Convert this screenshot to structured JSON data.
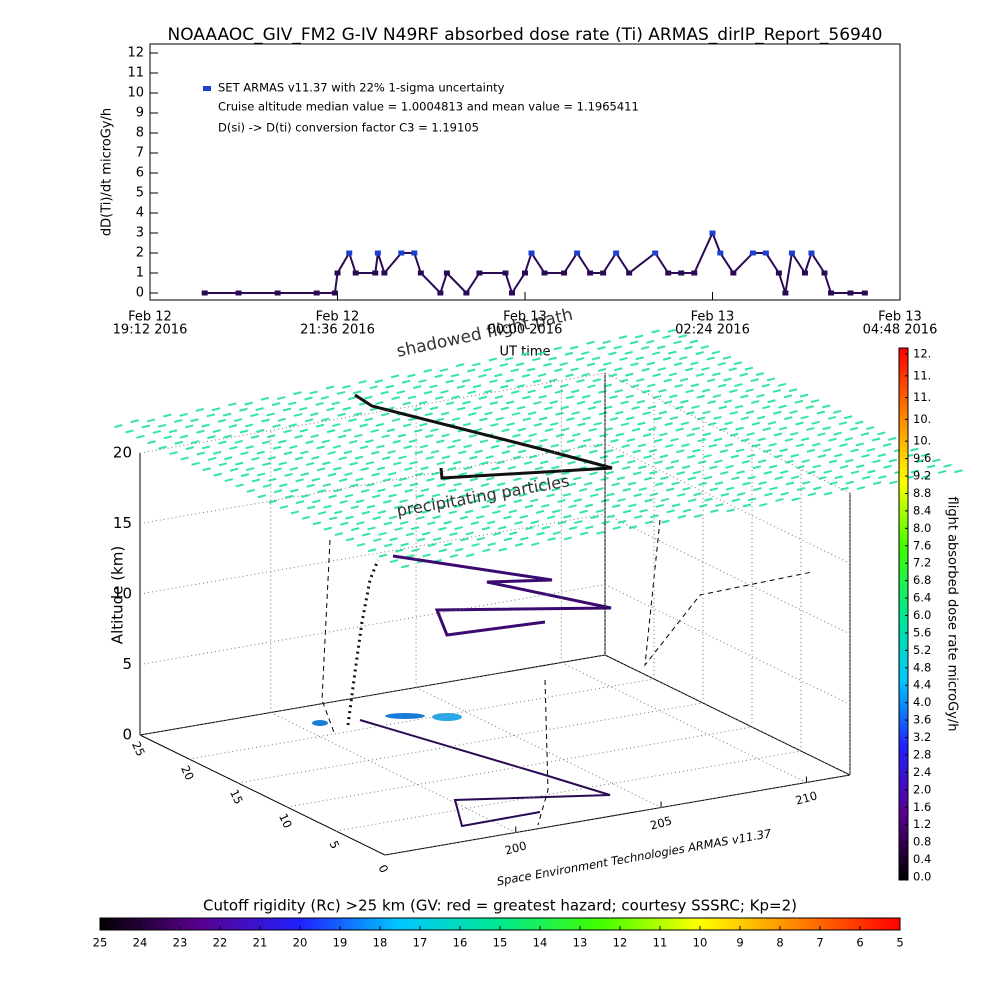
{
  "chart_data": [
    {
      "type": "line",
      "title": "NOAAAOC_GIV_FM2 G-IV   N49RF  absorbed dose rate (Ti) ARMAS_dirIP_Report_56940",
      "y_label": "dD(Ti)/dt microGy/h",
      "x_label": "UT time",
      "annotations": [
        "Cruise altitude median value = 1.0004813 and mean value = 1.1965411",
        "D(si) -> D(ti) conversion factor C3 = 1.19105"
      ],
      "x": [
        "2016-02-12T19:54",
        "2016-02-12T20:20",
        "2016-02-12T20:50",
        "2016-02-12T21:20",
        "2016-02-12T21:34",
        "2016-02-12T21:36",
        "2016-02-12T21:45",
        "2016-02-12T21:50",
        "2016-02-12T22:05",
        "2016-02-12T22:07",
        "2016-02-12T22:12",
        "2016-02-12T22:25",
        "2016-02-12T22:35",
        "2016-02-12T22:40",
        "2016-02-12T22:55",
        "2016-02-12T23:00",
        "2016-02-12T23:15",
        "2016-02-12T23:25",
        "2016-02-12T23:45",
        "2016-02-12T23:50",
        "2016-02-13T00:00",
        "2016-02-13T00:05",
        "2016-02-13T00:15",
        "2016-02-13T00:30",
        "2016-02-13T00:40",
        "2016-02-13T00:50",
        "2016-02-13T01:00",
        "2016-02-13T01:10",
        "2016-02-13T01:20",
        "2016-02-13T01:40",
        "2016-02-13T01:50",
        "2016-02-13T02:00",
        "2016-02-13T02:10",
        "2016-02-13T02:24",
        "2016-02-13T02:30",
        "2016-02-13T02:40",
        "2016-02-13T02:55",
        "2016-02-13T03:05",
        "2016-02-13T03:15",
        "2016-02-13T03:20",
        "2016-02-13T03:25",
        "2016-02-13T03:35",
        "2016-02-13T03:40",
        "2016-02-13T03:50",
        "2016-02-13T03:55",
        "2016-02-13T04:10",
        "2016-02-13T04:21"
      ],
      "series": [
        {
          "name": "SET ARMAS v11.37 with 22% 1-sigma uncertainty",
          "color": "#2a0a55",
          "legend_color": "#1f3fd0",
          "values": [
            0,
            0,
            0,
            0,
            0,
            1,
            2,
            1,
            1,
            2,
            1,
            2,
            2,
            1,
            0,
            1,
            0,
            1,
            1,
            0,
            1,
            2,
            1,
            1,
            2,
            1,
            1,
            2,
            1,
            2,
            1,
            1,
            1,
            3,
            2,
            1,
            2,
            2,
            1,
            0,
            2,
            1,
            2,
            1,
            0,
            0,
            0
          ]
        }
      ],
      "xlim": [
        "2016-02-12T19:12",
        "2016-02-13T04:48"
      ],
      "xticks": [
        {
          "value": "2016-02-12T19:12",
          "label": [
            "Feb 12",
            "19:12 2016"
          ]
        },
        {
          "value": "2016-02-12T21:36",
          "label": [
            "Feb 12",
            "21:36 2016"
          ]
        },
        {
          "value": "2016-02-13T00:00",
          "label": [
            "Feb 13",
            "00:00 2016"
          ]
        },
        {
          "value": "2016-02-13T02:24",
          "label": [
            "Feb 13",
            "02:24 2016"
          ]
        },
        {
          "value": "2016-02-13T04:48",
          "label": [
            "Feb 13",
            "04:48 2016"
          ]
        }
      ],
      "ylim": [
        -0.35,
        12.45
      ],
      "yticks": [
        0,
        1,
        2,
        3,
        4,
        5,
        6,
        7,
        8,
        9,
        10,
        11,
        12
      ]
    },
    {
      "type": "3d",
      "z_label": "Altitude (km)",
      "zlim": [
        0,
        20
      ],
      "zticks": [
        0,
        5,
        10,
        15,
        20
      ],
      "ylim": [
        25,
        0
      ],
      "yticks": [
        25,
        20,
        15,
        10,
        5,
        0
      ],
      "xlim": [
        195.5,
        211.5
      ],
      "xticks": [
        200,
        205,
        210
      ],
      "field_color": "#33e6a0",
      "annotations": [
        "shadowed flight path",
        "precipitating particles",
        "Space Environment Technologies ARMAS v11.37"
      ]
    },
    {
      "type": "colorbar",
      "orientation": "vertical",
      "label": "flight absorbed dose rate microGy/h",
      "colors": [
        "#000000",
        "#5a0090",
        "#2020ff",
        "#00c8ff",
        "#00e890",
        "#40ff00",
        "#ffff00",
        "#ff8000",
        "#ff0000"
      ],
      "lim": [
        0,
        12
      ],
      "ticks": [
        {
          "value": 0,
          "label": "0.0"
        },
        0.4,
        0.8,
        1.2,
        1.6,
        {
          "value": 2,
          "label": "2.0"
        },
        2.4,
        2.8,
        3.2,
        3.6,
        {
          "value": 4,
          "label": "4.0"
        },
        4.4,
        4.8,
        5.2,
        5.6,
        {
          "value": 6,
          "label": "6.0"
        },
        6.4,
        6.8,
        7.2,
        7.6,
        {
          "value": 8,
          "label": "8.0"
        },
        8.4,
        8.8,
        9.2,
        9.6,
        {
          "value": 10,
          "label": "10."
        },
        {
          "value": 10.5,
          "label": "10."
        },
        {
          "value": 11,
          "label": "11."
        },
        {
          "value": 11.5,
          "label": "11."
        },
        {
          "value": 12,
          "label": "12."
        }
      ]
    },
    {
      "type": "colorbar",
      "orientation": "horizontal",
      "label": "Cutoff rigidity (Rc) >25 km (GV: red = greatest hazard; courtesy SSSRC; Kp=2)",
      "colors": [
        "#000000",
        "#5a0090",
        "#2020ff",
        "#00c8ff",
        "#00e890",
        "#40ff00",
        "#ffff00",
        "#ff8000",
        "#ff0000"
      ],
      "lim": [
        25,
        5
      ],
      "ticks": [
        25,
        24,
        23,
        22,
        21,
        20,
        19,
        18,
        17,
        16,
        15,
        14,
        13,
        12,
        11,
        10,
        9,
        8,
        7,
        6,
        5
      ]
    }
  ]
}
